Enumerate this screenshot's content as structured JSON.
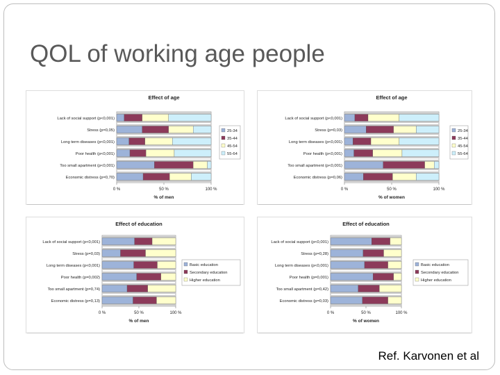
{
  "slide": {
    "title": "QOL of working age people",
    "reference": "Ref. Karvonen et al"
  },
  "colors": {
    "grid_band": "#c9c9c9",
    "frame": "#9e9e9e"
  },
  "chart_data": [
    {
      "type": "bar",
      "stacked": true,
      "orientation": "horizontal",
      "title": "Effect of age",
      "xlabel": "% of men",
      "xticks": [
        "0 %",
        "50 %",
        "100 %"
      ],
      "xlim": [
        0,
        100
      ],
      "categories": [
        "Lack of social support (p<0,001)",
        "Stress (p=0,05)",
        "Long term diseases (p<0,001)",
        "Poor health (p<0,001)",
        "Too small apartment (p<0,001)",
        "Economic distress (p=0,70)"
      ],
      "series": [
        {
          "name": "25-34",
          "color": "#9db3d9",
          "values": [
            8,
            27,
            13,
            14,
            40,
            28
          ]
        },
        {
          "name": "35-44",
          "color": "#8c3a5a",
          "values": [
            19,
            28,
            17,
            17,
            41,
            28
          ]
        },
        {
          "name": "45-54",
          "color": "#ffffcc",
          "values": [
            28,
            26,
            29,
            30,
            15,
            23
          ]
        },
        {
          "name": "55-64",
          "color": "#cdeffb",
          "values": [
            45,
            19,
            41,
            39,
            4,
            21
          ]
        }
      ]
    },
    {
      "type": "bar",
      "stacked": true,
      "orientation": "horizontal",
      "title": "Effect of age",
      "xlabel": "% of women",
      "xticks": [
        "0 %",
        "50 %",
        "100 %"
      ],
      "xlim": [
        0,
        100
      ],
      "categories": [
        "Lack of social support (p<0,001)",
        "Stress (p=0,03)",
        "Long term diseases (p<0,001)",
        "Poor health (p<0,001)",
        "Too small apartment (p<0,001)",
        "Economic distress (p=0,06)"
      ],
      "series": [
        {
          "name": "25-34",
          "color": "#9db3d9",
          "values": [
            11,
            23,
            9,
            10,
            41,
            20
          ]
        },
        {
          "name": "35-44",
          "color": "#8c3a5a",
          "values": [
            14,
            29,
            19,
            20,
            44,
            31
          ]
        },
        {
          "name": "45-54",
          "color": "#ffffcc",
          "values": [
            33,
            24,
            30,
            31,
            10,
            25
          ]
        },
        {
          "name": "55-64",
          "color": "#cdeffb",
          "values": [
            42,
            24,
            42,
            39,
            5,
            24
          ]
        }
      ]
    },
    {
      "type": "bar",
      "stacked": true,
      "orientation": "horizontal",
      "title": "Effect of education",
      "xlabel": "% of men",
      "xticks": [
        "0 %",
        "50 %",
        "100 %"
      ],
      "xlim": [
        0,
        100
      ],
      "categories": [
        "Lack of social support (p<0,001)",
        "Stress (p=0,03)",
        "Long term diseases (p<0,001)",
        "Poor health (p=0,002)",
        "Too small apartment (p=0,74)",
        "Economic distress (p=0,13)"
      ],
      "series": [
        {
          "name": "Basic education",
          "color": "#9db3d9",
          "values": [
            44,
            25,
            43,
            47,
            34,
            42
          ]
        },
        {
          "name": "Secondary education",
          "color": "#8c3a5a",
          "values": [
            24,
            34,
            32,
            33,
            28,
            32
          ]
        },
        {
          "name": "Higher education",
          "color": "#ffffcc",
          "values": [
            32,
            41,
            25,
            20,
            38,
            26
          ]
        }
      ]
    },
    {
      "type": "bar",
      "stacked": true,
      "orientation": "horizontal",
      "title": "Effect of education",
      "xlabel": "% of women",
      "xticks": [
        "0 %",
        "50 %",
        "100 %"
      ],
      "xlim": [
        0,
        100
      ],
      "categories": [
        "Lack of social support (p<0,001)",
        "Stress (p=0,28)",
        "Long term diseases (p<0,001)",
        "Poor health (p=0,001)",
        "Too small apartment (p=0,42)",
        "Economic distress (p=0,03)"
      ],
      "series": [
        {
          "name": "Basic education",
          "color": "#9db3d9",
          "values": [
            58,
            46,
            48,
            60,
            39,
            45
          ]
        },
        {
          "name": "Secondary education",
          "color": "#8c3a5a",
          "values": [
            26,
            29,
            33,
            29,
            30,
            36
          ]
        },
        {
          "name": "Higher education",
          "color": "#ffffcc",
          "values": [
            16,
            25,
            19,
            11,
            31,
            19
          ]
        }
      ]
    }
  ]
}
